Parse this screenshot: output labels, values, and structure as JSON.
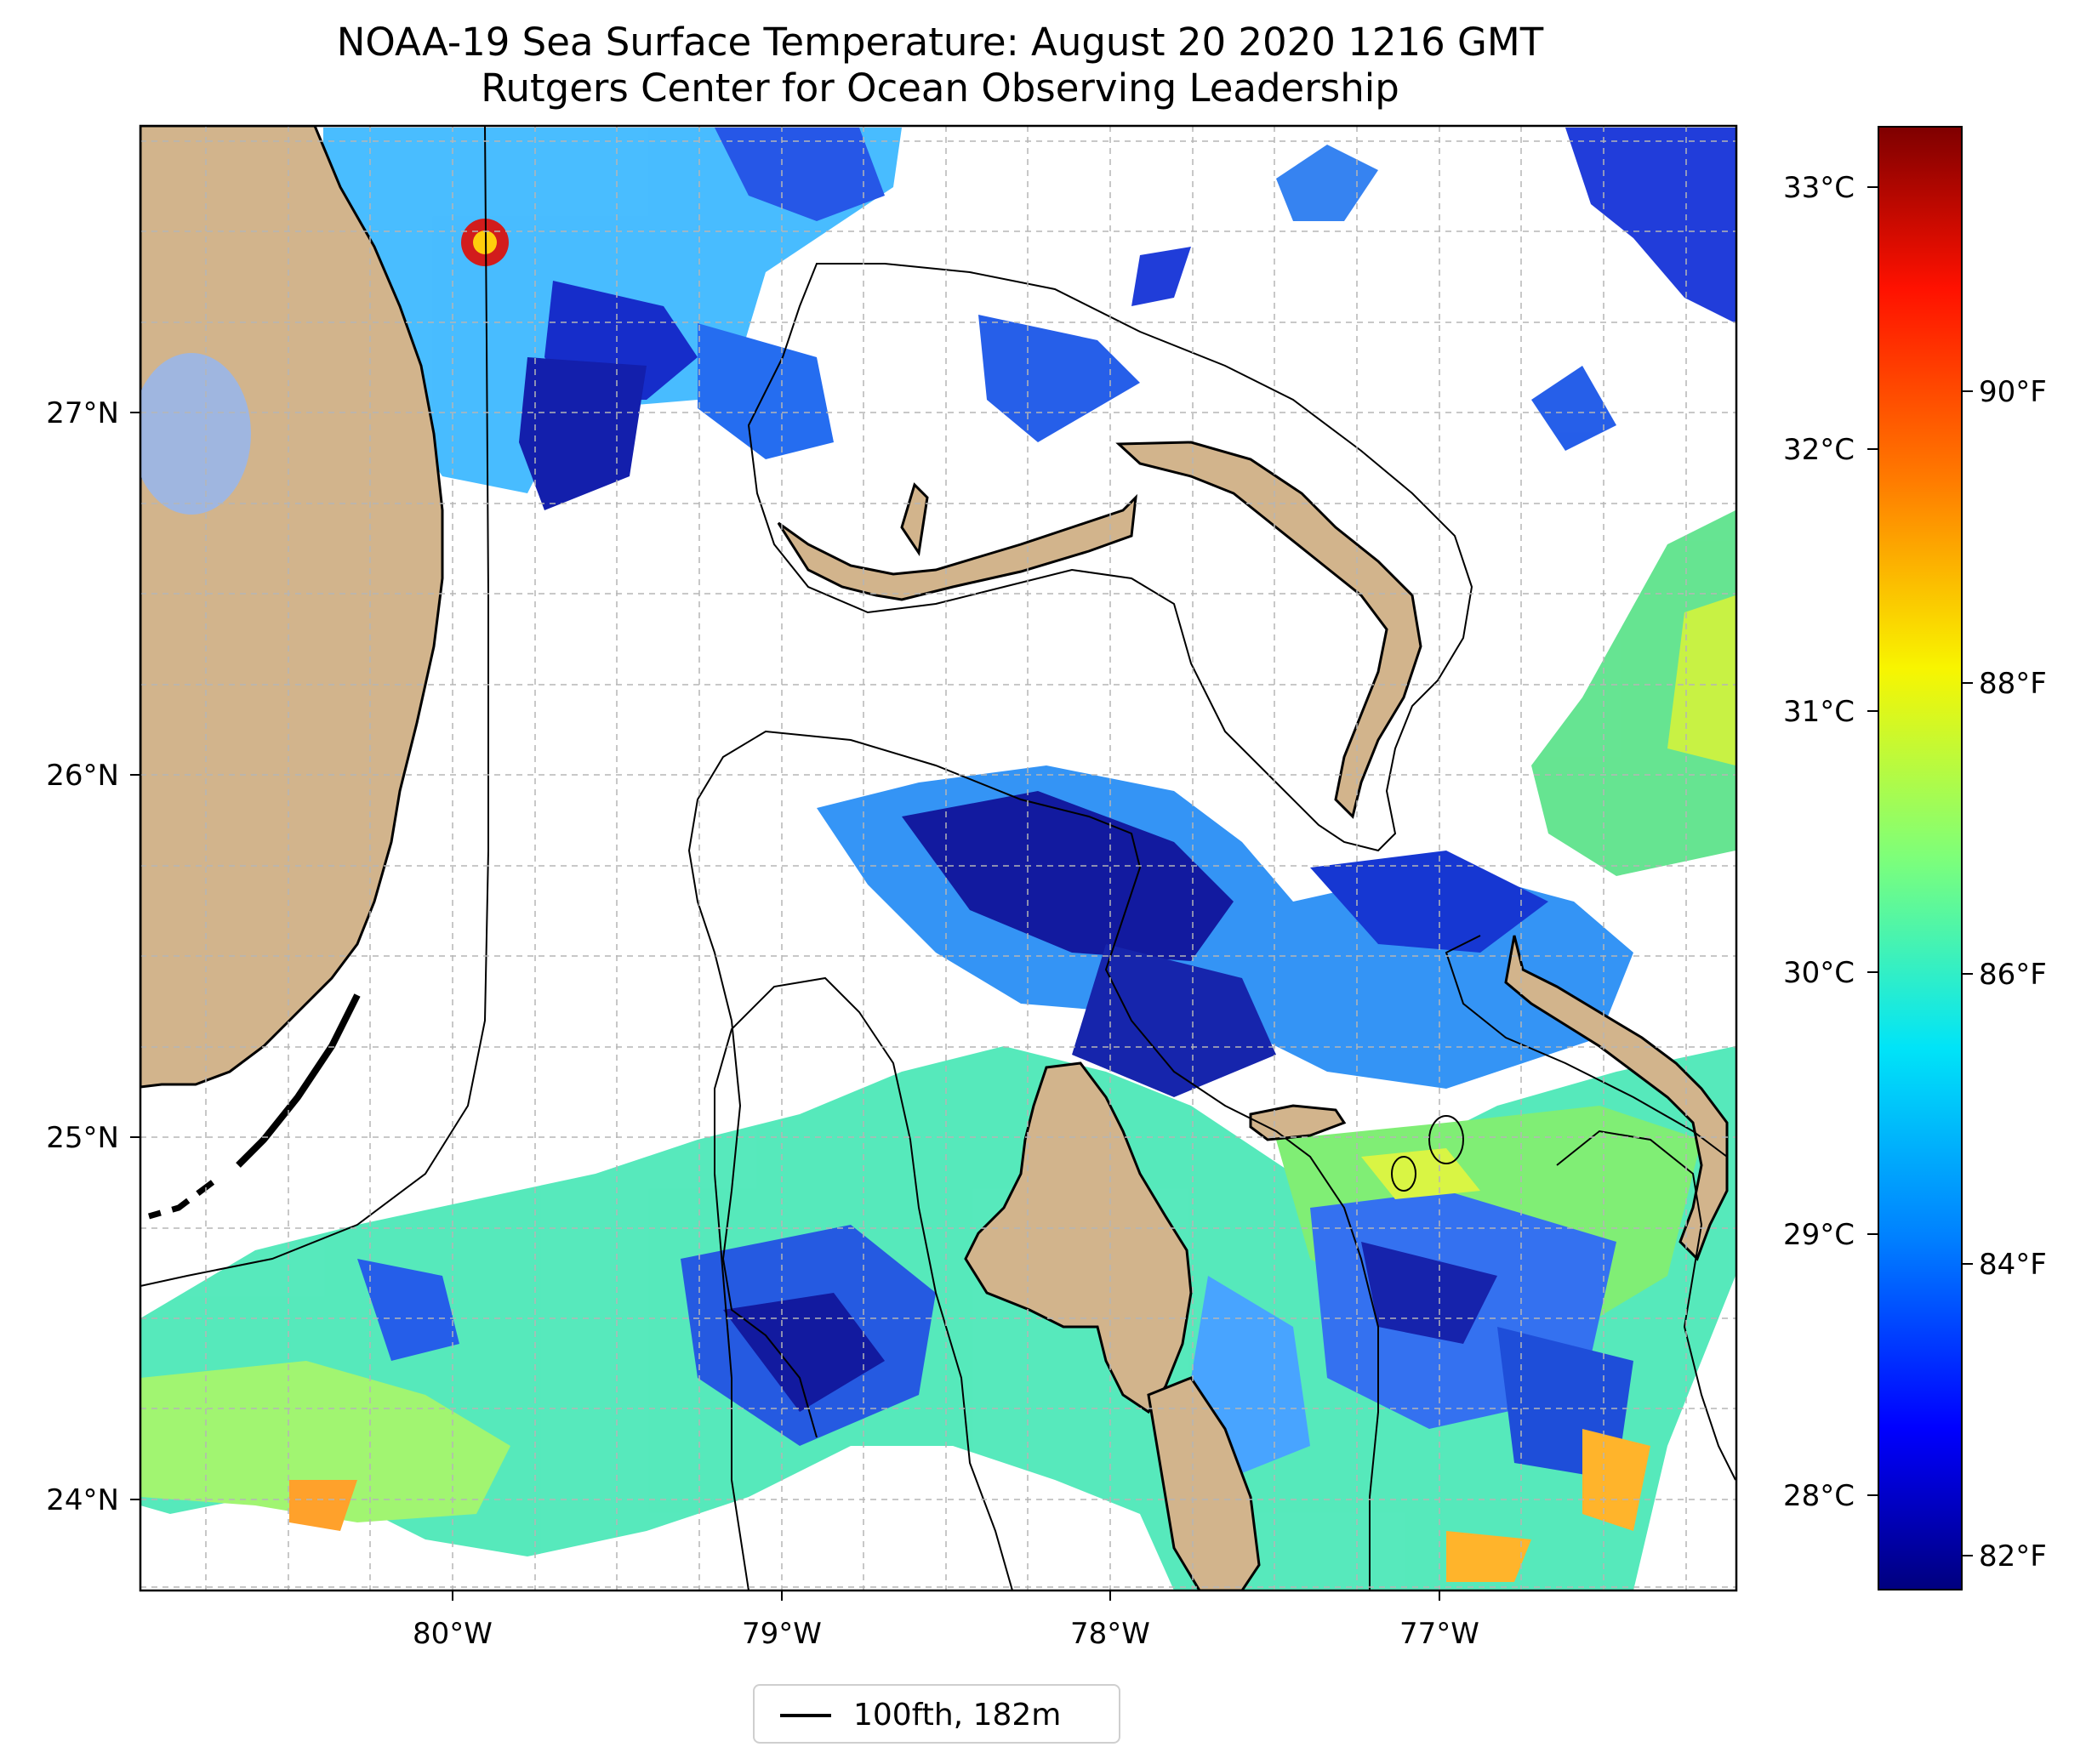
{
  "title": {
    "line1": "NOAA-19 Sea Surface Temperature: August 20 2020 1216 GMT",
    "line2": "Rutgers Center for Ocean Observing Leadership"
  },
  "map": {
    "x_ticks": [
      "80°W",
      "79°W",
      "78°W",
      "77°W"
    ],
    "y_ticks": [
      "27°N",
      "26°N",
      "25°N",
      "24°N"
    ],
    "lon_range": [
      -80.96,
      -76.1
    ],
    "lat_range": [
      23.75,
      27.8
    ],
    "gridlines": "dashed",
    "land_color": "#d2b48c",
    "lake_color": "#9fb6e0"
  },
  "legend": {
    "entry": "100fth, 182m"
  },
  "colorbar": {
    "celsius_ticks": [
      "33°C",
      "32°C",
      "31°C",
      "30°C",
      "29°C",
      "28°C"
    ],
    "fahrenheit_ticks": [
      "90°F",
      "88°F",
      "86°F",
      "84°F",
      "82°F"
    ],
    "range_c": [
      27.6,
      33.2
    ],
    "colormap": "jet"
  }
}
